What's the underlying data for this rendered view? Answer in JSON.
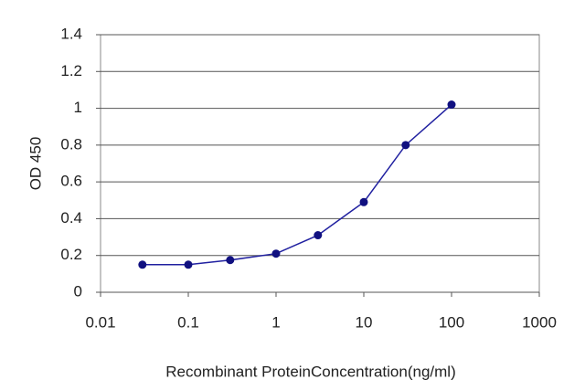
{
  "chart_data": {
    "type": "line",
    "x_label": "Recombinant ProteinConcentration(ng/ml)",
    "y_label": "OD 450",
    "x": [
      0.03,
      0.1,
      0.3,
      1,
      3,
      10,
      30,
      100
    ],
    "series": [
      {
        "name": "OD",
        "color": "#2020a0",
        "values": [
          0.15,
          0.15,
          0.175,
          0.21,
          0.31,
          0.49,
          0.8,
          1.02
        ]
      }
    ],
    "xlim": [
      0.01,
      1000
    ],
    "xticks": [
      0.01,
      0.1,
      1,
      10,
      100,
      1000
    ],
    "x_log": true,
    "ylim": [
      0,
      1.4
    ],
    "yticks": [
      0,
      0.2,
      0.4,
      0.6,
      0.8,
      1,
      1.2,
      1.4
    ],
    "grid": true
  }
}
